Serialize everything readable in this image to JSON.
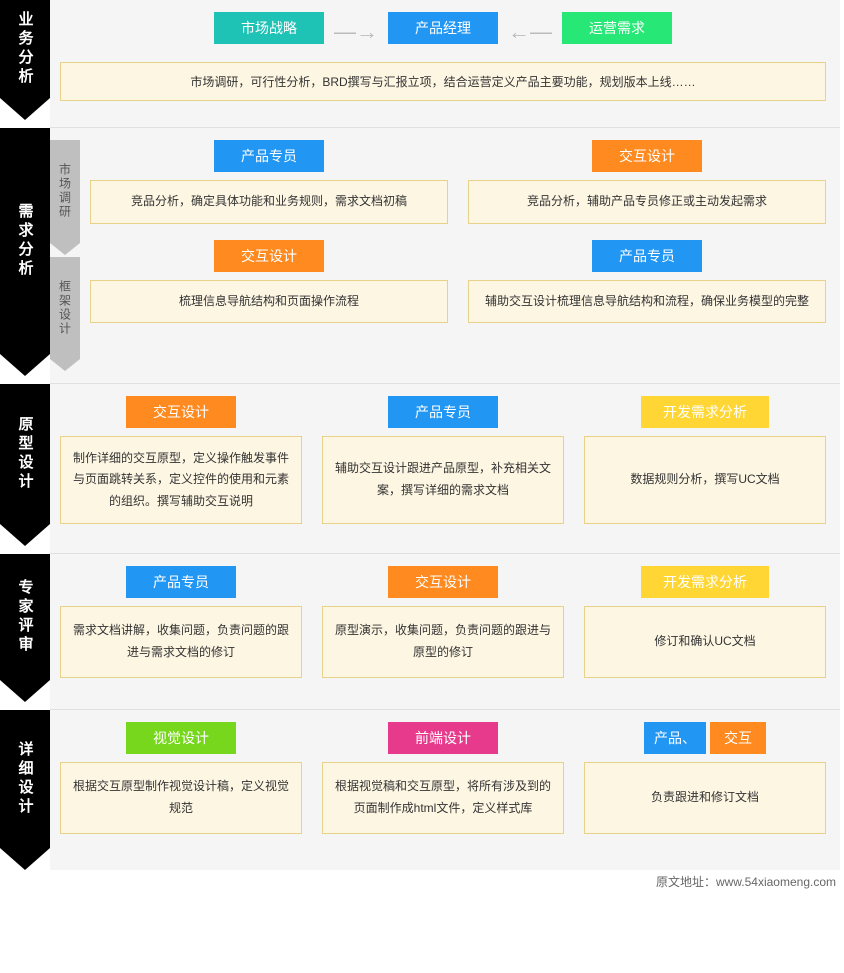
{
  "colors": {
    "cyan": "#1fc3b5",
    "blue": "#2196f3",
    "green": "#27e876",
    "orange": "#ff8a1f",
    "yellow": "#ffd633",
    "lime": "#76d71c",
    "magenta": "#e83a8c",
    "descBg": "#fdf6e3",
    "descBorder": "#e8d28a",
    "railBlack": "#000000",
    "subRailGrey": "#bfbfbf",
    "sectionBg": "#f5f5f5"
  },
  "rail": [
    "业务分析",
    "需求分析",
    "原型设计",
    "专家评审",
    "详细设计"
  ],
  "subRail": [
    "市场调研",
    "框架设计"
  ],
  "s1": {
    "roles": [
      {
        "label": "市场战略",
        "color": "cyan"
      },
      {
        "label": "产品经理",
        "color": "blue"
      },
      {
        "label": "运营需求",
        "color": "green"
      }
    ],
    "arrows": [
      "—→",
      "←—"
    ],
    "desc": "市场调研，可行性分析，BRD撰写与汇报立项，结合运营定义产品主要功能，规划版本上线……"
  },
  "s2a": {
    "cols": [
      {
        "role": {
          "label": "产品专员",
          "color": "blue"
        },
        "desc": "竞品分析，确定具体功能和业务规则，需求文档初稿"
      },
      {
        "role": {
          "label": "交互设计",
          "color": "orange"
        },
        "desc": "竞品分析，辅助产品专员修正或主动发起需求"
      }
    ]
  },
  "s2b": {
    "cols": [
      {
        "role": {
          "label": "交互设计",
          "color": "orange"
        },
        "desc": "梳理信息导航结构和页面操作流程"
      },
      {
        "role": {
          "label": "产品专员",
          "color": "blue"
        },
        "desc": "辅助交互设计梳理信息导航结构和流程，确保业务模型的完整"
      }
    ]
  },
  "s3": {
    "cols": [
      {
        "role": {
          "label": "交互设计",
          "color": "orange"
        },
        "desc": "制作详细的交互原型，定义操作触发事件与页面跳转关系，定义控件的使用和元素的组织。撰写辅助交互说明"
      },
      {
        "role": {
          "label": "产品专员",
          "color": "blue"
        },
        "desc": "辅助交互设计跟进产品原型，补充相关文案，撰写详细的需求文档"
      },
      {
        "role": {
          "label": "开发需求分析",
          "color": "yellow"
        },
        "desc": "数据规则分析，撰写UC文档"
      }
    ]
  },
  "s4": {
    "cols": [
      {
        "role": {
          "label": "产品专员",
          "color": "blue"
        },
        "desc": "需求文档讲解，收集问题，负责问题的跟进与需求文档的修订"
      },
      {
        "role": {
          "label": "交互设计",
          "color": "orange"
        },
        "desc": "原型演示，收集问题，负责问题的跟进与原型的修订"
      },
      {
        "role": {
          "label": "开发需求分析",
          "color": "yellow"
        },
        "desc": "修订和确认UC文档"
      }
    ]
  },
  "s5": {
    "cols": [
      {
        "role": {
          "label": "视觉设计",
          "color": "lime"
        },
        "desc": "根据交互原型制作视觉设计稿，定义视觉规范"
      },
      {
        "role": {
          "label": "前端设计",
          "color": "magenta"
        },
        "desc": "根据视觉稿和交互原型，将所有涉及到的页面制作成html文件，定义样式库"
      },
      {
        "role": {
          "labelA": "产品、",
          "labelB": "交互",
          "colorA": "blue",
          "colorB": "orange",
          "split": true
        },
        "desc": "负责跟进和修订文档"
      }
    ]
  },
  "footer": "原文地址：www.54xiaomeng.com",
  "heights": {
    "s1": 128,
    "s2": 256,
    "s3": 170,
    "s4": 156,
    "s5": 160
  }
}
